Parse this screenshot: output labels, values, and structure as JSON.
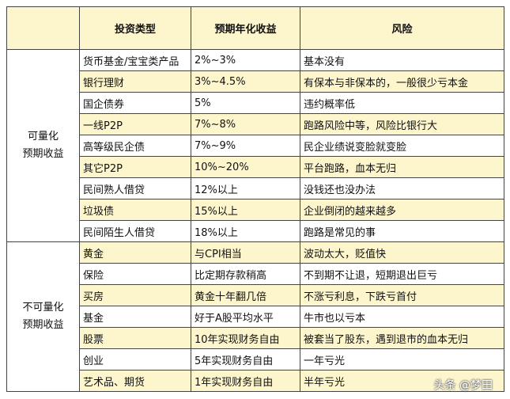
{
  "table": {
    "header": [
      "投资类型",
      "预期年化收益",
      "风险"
    ],
    "groups": [
      {
        "label": [
          "可量化",
          "预期收益"
        ],
        "rows": [
          [
            "货币基金/宝宝类产品",
            "2%~3%",
            "基本没有"
          ],
          [
            "银行理财",
            "3%~4.5%",
            "有保本与非保本的，一般很少亏本金"
          ],
          [
            "国企债券",
            "5%",
            "违约概率低"
          ],
          [
            "一线P2P",
            "7%~8%",
            "跑路风险中等，风险比银行大"
          ],
          [
            "高等级民企债",
            "7%~9%",
            "民企业绩说变脸就变脸"
          ],
          [
            "其它P2P",
            "10%~20%",
            "平台跑路，血本无归"
          ],
          [
            "民间熟人借贷",
            "12%以上",
            "没钱还也没办法"
          ],
          [
            "垃圾债",
            "15%以上",
            "企业倒闭的越来越多"
          ],
          [
            "民间陌生人借贷",
            "18%以上",
            "跑路是常见的事"
          ]
        ]
      },
      {
        "label": [
          "不可量化",
          "预期收益"
        ],
        "rows": [
          [
            "黄金",
            "与CPI相当",
            "波动太大，贬值快"
          ],
          [
            "保险",
            "比定期存款稍高",
            "不到期不让退，短期退出巨亏"
          ],
          [
            "买房",
            "黄金十年翻几倍",
            "不涨亏利息，下跌亏首付"
          ],
          [
            "基金",
            "好于A股平均水平",
            "牛市也以亏本"
          ],
          [
            "股票",
            "10年实现财务自由",
            "被套当了股东，遇到退市的血本无归"
          ],
          [
            "创业",
            "5年实现财务自由",
            "一年亏光"
          ],
          [
            "艺术品、期货",
            "1年实现财务自由",
            "半年亏光"
          ]
        ]
      }
    ]
  },
  "watermark": "头条 @梦田"
}
